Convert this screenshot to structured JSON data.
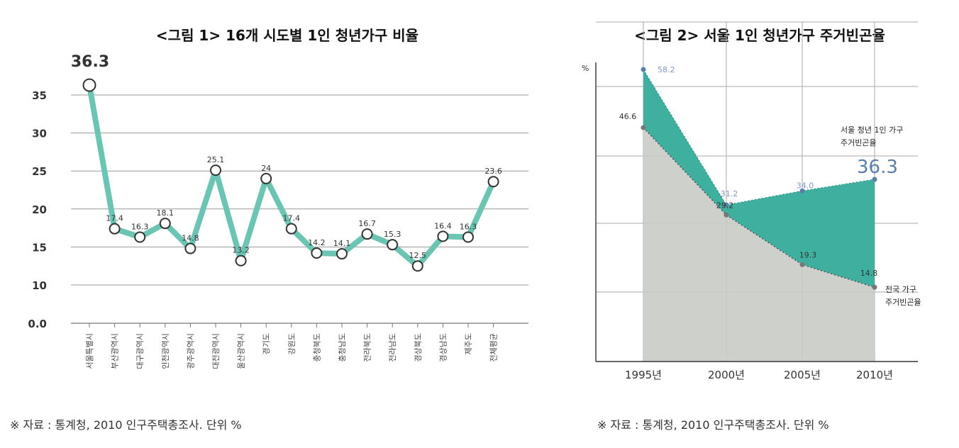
{
  "chart_data": [
    {
      "type": "line",
      "title": "<그림 1> 16개 시도별 1인 청년가구 비율",
      "source": "※ 자료 : 통계청, 2010 인구주택총조사. 단위 %",
      "categories": [
        "서울특별시",
        "부산광역시",
        "대구광역시",
        "인천광역시",
        "광주광역시",
        "대전광역시",
        "울산광역시",
        "경기도",
        "강원도",
        "충청북도",
        "충청남도",
        "전라북도",
        "전라남도",
        "경상북도",
        "경상남도",
        "제주도",
        "전체평균"
      ],
      "values": [
        36.3,
        17.4,
        16.3,
        18.1,
        14.8,
        25.1,
        13.2,
        24,
        17.4,
        14.2,
        14.1,
        16.7,
        15.3,
        12.5,
        16.4,
        16.3,
        23.6
      ],
      "value_labels": [
        "36.3",
        "17.4",
        "16.3",
        "18.1",
        "14.8",
        "25.1",
        "13.2",
        "24",
        "17.4",
        "14.2",
        "14.1",
        "16.7",
        "15.3",
        "12.5",
        "16.4",
        "16.3",
        "23.6"
      ],
      "yticks": [
        "0.0",
        "10",
        "15",
        "20",
        "25",
        "30",
        "35"
      ],
      "ylim": [
        0,
        37
      ],
      "grid": true,
      "line_color": "#6cc4b2",
      "marker_stroke": "#333333"
    },
    {
      "type": "area",
      "title": "<그림 2> 서울 1인 청년가구 주거빈곤율",
      "source": "※ 자료 : 통계청, 2010 인구주택총조사. 단위 %",
      "ylabel": "%",
      "x": [
        "1995년",
        "2000년",
        "2005년",
        "2010년"
      ],
      "series": [
        {
          "name": "서울 청년 1인 가구 주거빈곤율",
          "values": [
            58.2,
            31.2,
            34.0,
            36.3
          ],
          "value_labels": [
            "58.2",
            "31.2",
            "34.0",
            "36.3"
          ],
          "color": "#3fb0a0"
        },
        {
          "name": "전국 가구 주거빈곤율",
          "values": [
            46.6,
            29.2,
            19.3,
            14.8
          ],
          "value_labels": [
            "46.6",
            "29.2",
            "19.3",
            "14.8"
          ],
          "color": "#c9cbc6"
        }
      ],
      "series_labels": [
        {
          "lines": [
            "서울 청년 1인 가구",
            "주거빈곤율"
          ],
          "value": "36.3"
        },
        {
          "lines": [
            "전국 가구",
            "주거빈곤율"
          ]
        }
      ],
      "ylim": [
        0,
        62
      ],
      "grid": true
    }
  ]
}
